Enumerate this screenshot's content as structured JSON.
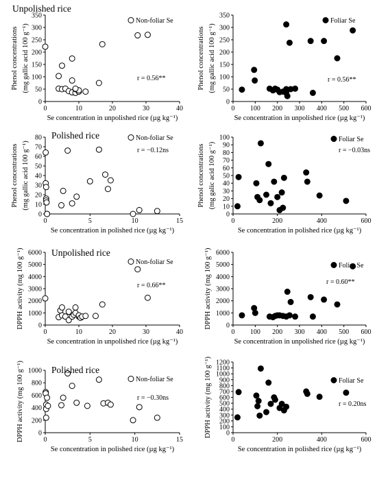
{
  "chart_data": [
    {
      "type": "scatter",
      "title": "Unpolished rice",
      "legend": "Non-foliar Se",
      "marker": "open",
      "correlation": "r = 0.56**",
      "xlabel": "Se concentration in unpolished rice (µg kg⁻¹)",
      "ylabel_lines": [
        "Phenol concentrations",
        "(mg gallic acid 100 g⁻¹)"
      ],
      "xlim": [
        0,
        40
      ],
      "ylim": [
        0,
        350
      ],
      "xticks": [
        0,
        10,
        20,
        30,
        40
      ],
      "yticks": [
        0,
        50,
        100,
        150,
        200,
        250,
        300,
        350
      ],
      "x": [
        0,
        4,
        5,
        4,
        5,
        6,
        7,
        8,
        8,
        9,
        9,
        10,
        10,
        12,
        8,
        9,
        17,
        16,
        27.5,
        30.5
      ],
      "y": [
        222,
        52,
        50,
        103,
        145,
        52,
        42,
        37,
        85,
        35,
        50,
        40,
        45,
        40,
        174,
        52,
        232,
        75,
        268,
        270
      ]
    },
    {
      "type": "scatter",
      "title": "",
      "legend": "Foliar Se",
      "marker": "filled",
      "correlation": "r = 0.56**",
      "xlabel": "Se concentration in unpolished rice (µg kg⁻¹)",
      "ylabel_lines": [
        "Phenol concentrations",
        "(mg gallic acid 100 g⁻¹)"
      ],
      "xlim": [
        0,
        600
      ],
      "ylim": [
        0,
        350
      ],
      "xticks": [
        0,
        100,
        200,
        300,
        400,
        500,
        600
      ],
      "yticks": [
        0,
        50,
        100,
        150,
        200,
        250,
        300,
        350
      ],
      "x": [
        40,
        95,
        98,
        165,
        180,
        190,
        200,
        210,
        225,
        240,
        240,
        245,
        260,
        280,
        350,
        360,
        410,
        470,
        540,
        240,
        255
      ],
      "y": [
        48,
        128,
        85,
        52,
        45,
        52,
        48,
        38,
        40,
        50,
        35,
        22,
        50,
        52,
        245,
        35,
        245,
        175,
        288,
        312,
        238
      ]
    },
    {
      "type": "scatter",
      "title": "Polished rice",
      "legend": "Non-foliar Se",
      "marker": "open",
      "correlation": "r = −0.12ns",
      "xlabel": "Se concentration in polished rice (µg kg⁻¹)",
      "ylabel_lines": [
        "Phenol concentrations",
        "(mg gallic acid 100 g⁻¹)"
      ],
      "xlim": [
        0,
        15
      ],
      "ylim": [
        0,
        80
      ],
      "xticks": [
        0,
        5,
        10,
        15
      ],
      "yticks": [
        0,
        10,
        20,
        30,
        40,
        50,
        60,
        70,
        80
      ],
      "x": [
        0.05,
        0.05,
        0.1,
        0.1,
        0.1,
        0.15,
        0.2,
        0.2,
        1.8,
        2,
        2.5,
        3,
        3.5,
        5,
        6,
        6.7,
        7,
        7.3,
        9.8,
        10.5,
        12.5
      ],
      "y": [
        64,
        32,
        28,
        16,
        14,
        12,
        0,
        0,
        9,
        24,
        66,
        11,
        18,
        34,
        67,
        41,
        26,
        35,
        0,
        4,
        3
      ]
    },
    {
      "type": "scatter",
      "title": "",
      "legend": "Foliar Se",
      "marker": "filled",
      "correlation": "r = −0.03ns",
      "xlabel": "Se concentration in polished rice (µg kg⁻¹)",
      "ylabel_lines": [
        "Phenol concentrations",
        "(mg galic acid 100 g⁻¹)"
      ],
      "xlim": [
        0,
        600
      ],
      "ylim": [
        0,
        100
      ],
      "xticks": [
        0,
        200,
        400,
        600
      ],
      "yticks": [
        0,
        10,
        20,
        30,
        40,
        50,
        60,
        70,
        80,
        90,
        100
      ],
      "x": [
        20,
        25,
        105,
        110,
        120,
        125,
        150,
        160,
        170,
        185,
        200,
        210,
        220,
        225,
        230,
        330,
        335,
        390,
        510
      ],
      "y": [
        10,
        48,
        40,
        22,
        18,
        92,
        25,
        65,
        14,
        42,
        22,
        5,
        28,
        8,
        47,
        54,
        42,
        24,
        17
      ]
    },
    {
      "type": "scatter",
      "title": "Unpolished rice",
      "legend": "Non-foliar Se",
      "marker": "open",
      "correlation": "r = 0.66**",
      "xlabel": "Se concentration in unpolished rice (µg kg⁻¹)",
      "ylabel_lines": [
        "DPPH activity (mg 100 g⁻¹)"
      ],
      "xlim": [
        0,
        40
      ],
      "ylim": [
        0,
        6000
      ],
      "xticks": [
        0,
        10,
        20,
        30,
        40
      ],
      "yticks": [
        0,
        1000,
        2000,
        3000,
        4000,
        5000,
        6000
      ],
      "x": [
        0,
        4,
        4.5,
        5,
        5,
        6,
        7,
        7,
        8,
        8.5,
        9,
        9,
        10,
        10,
        10.5,
        11,
        12,
        15,
        17,
        27.5,
        30.5
      ],
      "y": [
        2200,
        650,
        1200,
        1450,
        800,
        700,
        1100,
        400,
        700,
        850,
        1450,
        1000,
        700,
        800,
        600,
        700,
        750,
        750,
        1700,
        4600,
        2250
      ]
    },
    {
      "type": "scatter",
      "title": "",
      "legend": "Foliar Se",
      "marker": "filled",
      "correlation": "r = 0.60**",
      "xlabel": "Se concentration in unpolished rice (µg kg⁻¹)",
      "ylabel_lines": [
        "DPPH activity (mg 100 g⁻¹)"
      ],
      "xlim": [
        0,
        600
      ],
      "ylim": [
        0,
        6000
      ],
      "xticks": [
        0,
        100,
        200,
        300,
        400,
        500,
        600
      ],
      "yticks": [
        0,
        1000,
        2000,
        3000,
        4000,
        5000,
        6000
      ],
      "x": [
        40,
        95,
        100,
        165,
        180,
        190,
        200,
        210,
        225,
        240,
        245,
        255,
        260,
        280,
        350,
        360,
        410,
        470,
        540
      ],
      "y": [
        800,
        1400,
        1000,
        700,
        650,
        750,
        800,
        800,
        750,
        700,
        2750,
        800,
        1900,
        700,
        2300,
        700,
        2100,
        1700,
        4850
      ]
    },
    {
      "type": "scatter",
      "title": "Polished rice",
      "legend": "Non-foliar Se",
      "marker": "open",
      "correlation": "r = −0.30ns",
      "xlabel": "Se concentration in polished rice (µg kg⁻¹)",
      "ylabel_lines": [
        "DPPH activity (mg 100 g⁻¹)"
      ],
      "xlim": [
        0,
        15
      ],
      "ylim": [
        0,
        1000
      ],
      "xticks": [
        0,
        5,
        10,
        15
      ],
      "yticks": [
        0,
        200,
        400,
        600,
        800,
        1000
      ],
      "x": [
        0.05,
        0.05,
        0.1,
        0.1,
        0.1,
        0.2,
        0.3,
        1.8,
        2,
        2.5,
        3,
        3.5,
        4.7,
        6,
        6.5,
        7,
        7.3,
        9.8,
        10.5,
        12.5
      ],
      "y": [
        650,
        630,
        450,
        380,
        240,
        560,
        430,
        440,
        560,
        950,
        750,
        480,
        430,
        850,
        470,
        480,
        450,
        200,
        410,
        240
      ]
    },
    {
      "type": "scatter",
      "title": "",
      "legend": "Foliar Se",
      "marker": "filled",
      "correlation": "r = 0.20ns",
      "xlabel": "Se concentration in polished rice (µg kg⁻¹)",
      "ylabel_lines": [
        "DPPH activity (mg 100 g⁻¹)"
      ],
      "xlim": [
        0,
        600
      ],
      "ylim": [
        0,
        1200
      ],
      "xticks": [
        0,
        200,
        400,
        600
      ],
      "yticks": [
        0,
        100,
        200,
        300,
        400,
        500,
        600,
        700,
        800,
        900,
        1000,
        1100,
        1200
      ],
      "x": [
        20,
        25,
        105,
        110,
        115,
        120,
        125,
        150,
        160,
        170,
        185,
        190,
        210,
        220,
        230,
        240,
        330,
        335,
        390,
        510
      ],
      "y": [
        260,
        690,
        630,
        450,
        540,
        290,
        1090,
        350,
        850,
        490,
        600,
        560,
        420,
        490,
        380,
        440,
        700,
        660,
        610,
        680
      ]
    }
  ]
}
